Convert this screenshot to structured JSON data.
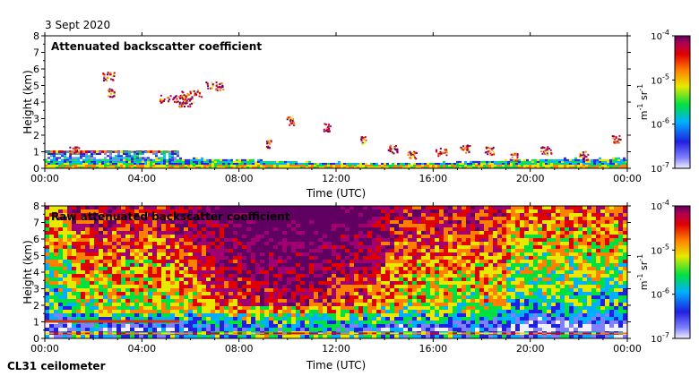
{
  "date": "3 Sept 2020",
  "instrument": "CL31 ceilometer",
  "chart_data": [
    {
      "type": "heatmap",
      "title": "Attenuated backscatter coefficient",
      "xlabel": "Time (UTC)",
      "ylabel": "Height (km)",
      "xticks": [
        "00:00",
        "04:00",
        "08:00",
        "12:00",
        "16:00",
        "20:00",
        "00:00"
      ],
      "xlim_hours": [
        0,
        24
      ],
      "ylim": [
        0,
        8
      ],
      "yticks": [
        0,
        1,
        2,
        3,
        4,
        5,
        6,
        7,
        8
      ],
      "features": [
        {
          "name": "aerosol boundary layer",
          "height_km": [
            0,
            0.5
          ],
          "level": "high"
        },
        {
          "name": "cloud layer",
          "time_h": [
            0,
            5
          ],
          "height_km": [
            0.9,
            1.1
          ],
          "level": "high"
        },
        {
          "name": "elevated aerosol",
          "time_h": [
            5,
            8
          ],
          "height_km": [
            4,
            5
          ],
          "level": "high"
        },
        {
          "name": "scattered clouds",
          "time_h": [
            9,
            24
          ],
          "height_km": [
            1,
            3
          ],
          "level": "high"
        }
      ]
    },
    {
      "type": "heatmap",
      "title": "Raw attenuated backscatter coefficient",
      "xlabel": "Time (UTC)",
      "ylabel": "Height (km)",
      "xticks": [
        "00:00",
        "04:00",
        "08:00",
        "12:00",
        "16:00",
        "20:00",
        "00:00"
      ],
      "xlim_hours": [
        0,
        24
      ],
      "ylim": [
        0,
        8
      ],
      "yticks": [
        0,
        1,
        2,
        3,
        4,
        5,
        6,
        7,
        8
      ],
      "features": [
        {
          "name": "noisy background",
          "time_h": [
            0,
            24
          ],
          "height_km": [
            0,
            8
          ],
          "level": "medium"
        },
        {
          "name": "high noise daytime",
          "time_h": [
            6,
            14
          ],
          "height_km": [
            3,
            8
          ],
          "level": "high"
        }
      ]
    }
  ],
  "colorbar": {
    "ticks": [
      {
        "base": "10",
        "exp": "-4"
      },
      {
        "base": "10",
        "exp": "-5"
      },
      {
        "base": "10",
        "exp": "-6"
      },
      {
        "base": "10",
        "exp": "-7"
      }
    ],
    "unit_m": "m",
    "unit_m_exp": "-1",
    "unit_sr": "sr",
    "unit_sr_exp": "-1",
    "colors": [
      "#e8e8ff",
      "#3030e0",
      "#00c8ff",
      "#00e040",
      "#e8e800",
      "#ff8000",
      "#e00000",
      "#a00070",
      "#600060"
    ]
  }
}
